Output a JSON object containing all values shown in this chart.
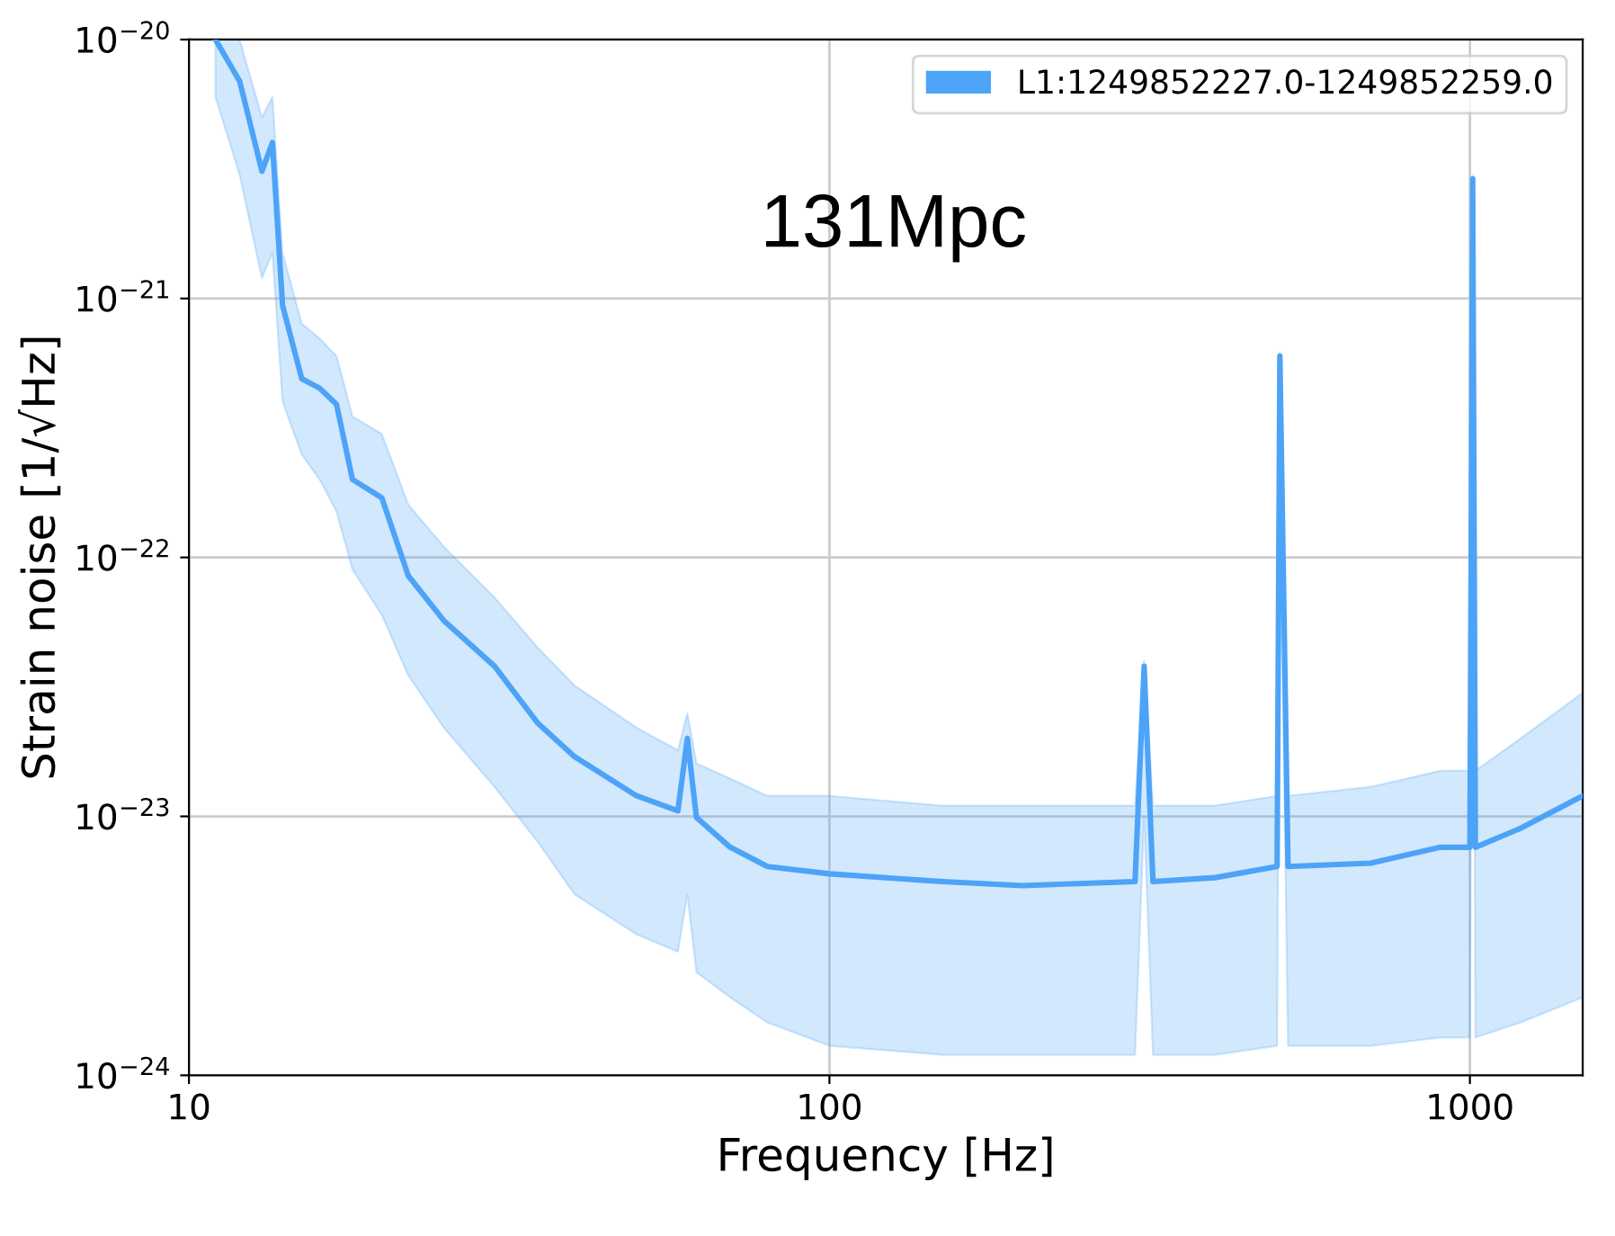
{
  "chart_data": {
    "type": "line",
    "xlabel": "Frequency [Hz]",
    "ylabel": "Strain noise [1/√Hz]",
    "log": "xy",
    "grid": true,
    "legend": "top right",
    "xlim": [
      10,
      1500
    ],
    "ylim": [
      1e-24,
      1e-20
    ],
    "xticks": [
      10,
      100,
      1000
    ],
    "yticks": [
      {
        "value": 1e-24,
        "label": "10$^{−24}$"
      },
      {
        "value": 1e-23,
        "label": "10$^{−23}$"
      },
      {
        "value": 1e-22,
        "label": "10$^{−22}$"
      },
      {
        "value": 1e-21,
        "label": "10$^{−21}$"
      },
      {
        "value": 1e-20,
        "label": "10$^{−20}$"
      }
    ],
    "annotations": [
      "131Mpc"
    ],
    "x": [
      11,
      12,
      13,
      13.5,
      14,
      15,
      16,
      17,
      18,
      20,
      22,
      25,
      30,
      35,
      40,
      50,
      58,
      60,
      62,
      70,
      80,
      100,
      150,
      200,
      300,
      310,
      320,
      400,
      500,
      505,
      520,
      700,
      900,
      1000,
      1010,
      1020,
      1200,
      1500
    ],
    "series": [
      {
        "name": "L1:1249852227.0-1249852259.0",
        "color": "#4da3f7",
        "values": [
          1e-20,
          6.9e-21,
          3.1e-21,
          4e-21,
          9.4e-22,
          4.9e-22,
          4.5e-22,
          3.9e-22,
          2e-22,
          1.7e-22,
          8.5e-23,
          5.7e-23,
          3.8e-23,
          2.3e-23,
          1.7e-23,
          1.2e-23,
          1.05e-23,
          2e-23,
          9.9e-24,
          7.6e-24,
          6.4e-24,
          6e-24,
          5.6e-24,
          5.4e-24,
          5.6e-24,
          3.8e-23,
          5.6e-24,
          5.8e-24,
          6.4e-24,
          6e-22,
          6.4e-24,
          6.6e-24,
          7.6e-24,
          7.6e-24,
          2.9e-21,
          7.6e-24,
          9e-24,
          1.2e-23
        ],
        "upper": [
          1e-20,
          1e-20,
          5e-21,
          6e-21,
          1.5e-21,
          8e-22,
          7e-22,
          6e-22,
          3.5e-22,
          3e-22,
          1.6e-22,
          1.1e-22,
          7e-23,
          4.5e-23,
          3.2e-23,
          2.2e-23,
          1.8e-23,
          2.5e-23,
          1.6e-23,
          1.4e-23,
          1.2e-23,
          1.2e-23,
          1.1e-23,
          1.1e-23,
          1.1e-23,
          4e-23,
          1.1e-23,
          1.1e-23,
          1.2e-23,
          6.2e-22,
          1.2e-23,
          1.3e-23,
          1.5e-23,
          1.5e-23,
          3e-21,
          1.5e-23,
          2e-23,
          3e-23
        ],
        "lower": [
          6e-21,
          3e-21,
          1.2e-21,
          1.5e-21,
          4e-22,
          2.5e-22,
          2e-22,
          1.5e-22,
          9e-23,
          6e-23,
          3.5e-23,
          2.2e-23,
          1.3e-23,
          8e-24,
          5e-24,
          3.5e-24,
          3e-24,
          5e-24,
          2.5e-24,
          2e-24,
          1.6e-24,
          1.3e-24,
          1.2e-24,
          1.2e-24,
          1.2e-24,
          1e-23,
          1.2e-24,
          1.2e-24,
          1.3e-24,
          2e-22,
          1.3e-24,
          1.3e-24,
          1.4e-24,
          1.4e-24,
          1e-21,
          1.4e-24,
          1.6e-24,
          2e-24
        ]
      }
    ]
  }
}
